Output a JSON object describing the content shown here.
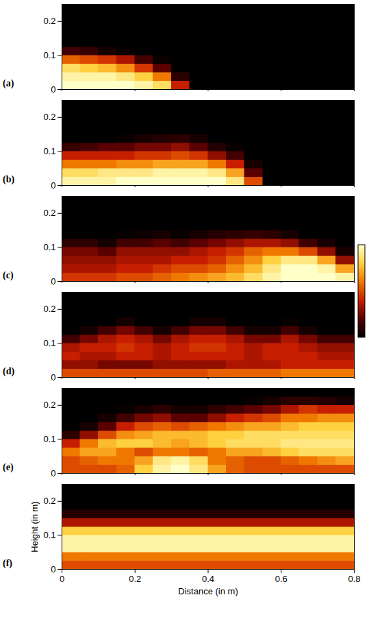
{
  "chart_data": [
    {
      "type": "heatmap",
      "panel": "(a)",
      "xlim": [
        0,
        0.8
      ],
      "ylim": [
        0,
        0.25
      ],
      "xticks": [
        0,
        0.2,
        0.4,
        0.6,
        0.8
      ],
      "yticks": [
        0,
        0.1,
        0.2
      ],
      "tick_labels": "y",
      "x_bins": [
        0,
        0.05,
        0.1,
        0.15,
        0.2,
        0.25,
        0.3,
        0.35,
        0.4,
        0.45,
        0.5,
        0.55,
        0.6,
        0.65,
        0.7,
        0.75,
        0.8
      ],
      "y_bins": [
        0,
        0.025,
        0.05,
        0.075,
        0.1,
        0.125,
        0.15,
        0.175,
        0.2,
        0.225,
        0.25
      ],
      "cells": [
        [
          1,
          1,
          1,
          1,
          0.95,
          0.85,
          0.4,
          0,
          0,
          0,
          0,
          0,
          0,
          0,
          0,
          0
        ],
        [
          0.95,
          0.95,
          0.95,
          0.9,
          0.8,
          0.6,
          0.1,
          0,
          0,
          0,
          0,
          0,
          0,
          0,
          0,
          0
        ],
        [
          0.85,
          0.8,
          0.75,
          0.65,
          0.45,
          0.2,
          0,
          0,
          0,
          0,
          0,
          0,
          0,
          0,
          0,
          0
        ],
        [
          0.55,
          0.5,
          0.45,
          0.35,
          0.15,
          0.02,
          0,
          0,
          0,
          0,
          0,
          0,
          0,
          0,
          0,
          0
        ],
        [
          0.15,
          0.12,
          0.05,
          0.02,
          0,
          0,
          0,
          0,
          0,
          0,
          0,
          0,
          0,
          0,
          0,
          0
        ],
        [
          0,
          0,
          0,
          0,
          0,
          0,
          0,
          0,
          0,
          0,
          0,
          0,
          0,
          0,
          0,
          0
        ],
        [
          0,
          0,
          0,
          0,
          0,
          0,
          0,
          0,
          0,
          0,
          0,
          0,
          0,
          0,
          0,
          0
        ],
        [
          0,
          0,
          0,
          0,
          0,
          0,
          0,
          0,
          0,
          0,
          0,
          0,
          0,
          0,
          0,
          0
        ],
        [
          0,
          0,
          0,
          0,
          0,
          0,
          0,
          0,
          0,
          0,
          0,
          0,
          0,
          0,
          0,
          0
        ],
        [
          0,
          0,
          0,
          0,
          0,
          0,
          0,
          0,
          0,
          0,
          0,
          0,
          0,
          0,
          0,
          0
        ]
      ]
    },
    {
      "type": "heatmap",
      "panel": "(b)",
      "xlim": [
        0,
        0.8
      ],
      "ylim": [
        0,
        0.25
      ],
      "xticks": [
        0,
        0.2,
        0.4,
        0.6,
        0.8
      ],
      "yticks": [
        0,
        0.1,
        0.2
      ],
      "tick_labels": "y",
      "x_bins": [
        0,
        0.05,
        0.1,
        0.15,
        0.2,
        0.25,
        0.3,
        0.35,
        0.4,
        0.45,
        0.5,
        0.55,
        0.6,
        0.65,
        0.7,
        0.75,
        0.8
      ],
      "y_bins": [
        0,
        0.025,
        0.05,
        0.075,
        0.1,
        0.125,
        0.15,
        0.175,
        0.2,
        0.225,
        0.25
      ],
      "cells": [
        [
          0.95,
          0.95,
          0.95,
          1,
          1,
          1,
          1,
          1,
          1,
          0.9,
          0.5,
          0,
          0,
          0,
          0,
          0
        ],
        [
          0.85,
          0.85,
          0.9,
          0.9,
          0.9,
          0.95,
          0.95,
          0.95,
          0.9,
          0.7,
          0.2,
          0,
          0,
          0,
          0,
          0
        ],
        [
          0.6,
          0.6,
          0.6,
          0.65,
          0.65,
          0.7,
          0.7,
          0.7,
          0.6,
          0.4,
          0.05,
          0,
          0,
          0,
          0,
          0
        ],
        [
          0.4,
          0.4,
          0.4,
          0.4,
          0.45,
          0.45,
          0.5,
          0.45,
          0.3,
          0.15,
          0,
          0,
          0,
          0,
          0,
          0
        ],
        [
          0.12,
          0.15,
          0.2,
          0.2,
          0.25,
          0.25,
          0.3,
          0.2,
          0.08,
          0.02,
          0,
          0,
          0,
          0,
          0,
          0
        ],
        [
          0,
          0,
          0,
          0.02,
          0.05,
          0.08,
          0.1,
          0.05,
          0,
          0,
          0,
          0,
          0,
          0,
          0,
          0
        ],
        [
          0,
          0,
          0,
          0,
          0,
          0,
          0,
          0,
          0,
          0,
          0,
          0,
          0,
          0,
          0,
          0
        ],
        [
          0,
          0,
          0,
          0,
          0,
          0,
          0,
          0,
          0,
          0,
          0,
          0,
          0,
          0,
          0,
          0
        ],
        [
          0,
          0,
          0,
          0,
          0,
          0,
          0,
          0,
          0,
          0,
          0,
          0,
          0,
          0,
          0,
          0
        ],
        [
          0,
          0,
          0,
          0,
          0,
          0,
          0,
          0,
          0,
          0,
          0,
          0,
          0,
          0,
          0,
          0
        ]
      ]
    },
    {
      "type": "heatmap",
      "panel": "(c)",
      "xlim": [
        0,
        0.8
      ],
      "ylim": [
        0,
        0.25
      ],
      "xticks": [
        0,
        0.2,
        0.4,
        0.6,
        0.8
      ],
      "yticks": [
        0,
        0.1,
        0.2
      ],
      "tick_labels": "y",
      "colorbar_range": [
        0,
        1
      ],
      "colorbar_ticks": [],
      "x_bins": [
        0,
        0.05,
        0.1,
        0.15,
        0.2,
        0.25,
        0.3,
        0.35,
        0.4,
        0.45,
        0.5,
        0.55,
        0.6,
        0.65,
        0.7,
        0.75,
        0.8
      ],
      "y_bins": [
        0,
        0.025,
        0.05,
        0.075,
        0.1,
        0.125,
        0.15,
        0.175,
        0.2,
        0.225,
        0.25
      ],
      "cells": [
        [
          0.45,
          0.45,
          0.45,
          0.5,
          0.5,
          0.55,
          0.6,
          0.65,
          0.7,
          0.75,
          0.85,
          0.95,
          1,
          1,
          1,
          0.95
        ],
        [
          0.35,
          0.35,
          0.35,
          0.4,
          0.4,
          0.45,
          0.5,
          0.5,
          0.55,
          0.65,
          0.75,
          0.9,
          1,
          1,
          0.95,
          0.7
        ],
        [
          0.3,
          0.3,
          0.3,
          0.35,
          0.35,
          0.35,
          0.4,
          0.4,
          0.45,
          0.55,
          0.65,
          0.8,
          0.9,
          0.9,
          0.7,
          0.3
        ],
        [
          0.25,
          0.25,
          0.2,
          0.3,
          0.3,
          0.3,
          0.3,
          0.35,
          0.4,
          0.45,
          0.55,
          0.6,
          0.6,
          0.5,
          0.3,
          0.05
        ],
        [
          0.1,
          0.1,
          0.05,
          0.15,
          0.15,
          0.2,
          0.15,
          0.2,
          0.25,
          0.3,
          0.35,
          0.35,
          0.3,
          0.15,
          0.05,
          0
        ],
        [
          0,
          0,
          0,
          0.02,
          0.03,
          0.05,
          0.02,
          0.05,
          0.08,
          0.1,
          0.12,
          0.1,
          0.05,
          0,
          0,
          0
        ],
        [
          0,
          0,
          0,
          0,
          0,
          0,
          0,
          0,
          0,
          0,
          0,
          0,
          0,
          0,
          0,
          0
        ],
        [
          0,
          0,
          0,
          0,
          0,
          0,
          0,
          0,
          0,
          0,
          0,
          0,
          0,
          0,
          0,
          0
        ],
        [
          0,
          0,
          0,
          0,
          0,
          0,
          0,
          0,
          0,
          0,
          0,
          0,
          0,
          0,
          0,
          0
        ],
        [
          0,
          0,
          0,
          0,
          0,
          0,
          0,
          0,
          0,
          0,
          0,
          0,
          0,
          0,
          0,
          0
        ]
      ]
    },
    {
      "type": "heatmap",
      "panel": "(d)",
      "xlim": [
        0,
        0.8
      ],
      "ylim": [
        0,
        0.25
      ],
      "xticks": [
        0,
        0.2,
        0.4,
        0.6,
        0.8
      ],
      "yticks": [
        0,
        0.1,
        0.2
      ],
      "tick_labels": "y",
      "x_bins": [
        0,
        0.05,
        0.1,
        0.15,
        0.2,
        0.25,
        0.3,
        0.35,
        0.4,
        0.45,
        0.5,
        0.55,
        0.6,
        0.65,
        0.7,
        0.75,
        0.8
      ],
      "y_bins": [
        0,
        0.025,
        0.05,
        0.075,
        0.1,
        0.125,
        0.15,
        0.175,
        0.2,
        0.225,
        0.25
      ],
      "cells": [
        [
          0.5,
          0.5,
          0.5,
          0.5,
          0.5,
          0.5,
          0.5,
          0.5,
          0.55,
          0.55,
          0.55,
          0.55,
          0.6,
          0.6,
          0.6,
          0.6
        ],
        [
          0.3,
          0.3,
          0.25,
          0.25,
          0.25,
          0.3,
          0.3,
          0.3,
          0.3,
          0.35,
          0.35,
          0.35,
          0.4,
          0.4,
          0.4,
          0.4
        ],
        [
          0.4,
          0.35,
          0.35,
          0.4,
          0.4,
          0.35,
          0.4,
          0.4,
          0.4,
          0.4,
          0.35,
          0.4,
          0.4,
          0.4,
          0.35,
          0.35
        ],
        [
          0.35,
          0.4,
          0.4,
          0.45,
          0.4,
          0.35,
          0.4,
          0.45,
          0.45,
          0.4,
          0.35,
          0.4,
          0.4,
          0.35,
          0.3,
          0.3
        ],
        [
          0.15,
          0.25,
          0.35,
          0.4,
          0.35,
          0.25,
          0.35,
          0.4,
          0.4,
          0.35,
          0.25,
          0.25,
          0.35,
          0.25,
          0.15,
          0.15
        ],
        [
          0,
          0.05,
          0.15,
          0.25,
          0.15,
          0.05,
          0.15,
          0.25,
          0.25,
          0.15,
          0.05,
          0.05,
          0.15,
          0.05,
          0,
          0
        ],
        [
          0,
          0,
          0,
          0.05,
          0,
          0,
          0,
          0.05,
          0.05,
          0,
          0,
          0,
          0.02,
          0,
          0,
          0
        ],
        [
          0,
          0,
          0,
          0,
          0,
          0,
          0,
          0,
          0,
          0,
          0,
          0,
          0,
          0,
          0,
          0
        ],
        [
          0,
          0,
          0,
          0,
          0,
          0,
          0,
          0,
          0,
          0,
          0,
          0,
          0,
          0,
          0,
          0
        ],
        [
          0,
          0,
          0,
          0,
          0,
          0,
          0,
          0,
          0,
          0,
          0,
          0,
          0,
          0,
          0,
          0
        ]
      ]
    },
    {
      "type": "heatmap",
      "panel": "(e)",
      "xlim": [
        0,
        0.8
      ],
      "ylim": [
        0,
        0.25
      ],
      "xticks": [
        0,
        0.2,
        0.4,
        0.6,
        0.8
      ],
      "yticks": [
        0,
        0.1,
        0.2
      ],
      "tick_labels": "y",
      "x_bins": [
        0,
        0.05,
        0.1,
        0.15,
        0.2,
        0.25,
        0.3,
        0.35,
        0.4,
        0.45,
        0.5,
        0.55,
        0.6,
        0.65,
        0.7,
        0.75,
        0.8
      ],
      "y_bins": [
        0,
        0.025,
        0.05,
        0.075,
        0.1,
        0.125,
        0.15,
        0.175,
        0.2,
        0.225,
        0.25
      ],
      "cells": [
        [
          0.5,
          0.5,
          0.5,
          0.55,
          0.8,
          0.95,
          1,
          0.9,
          0.7,
          0.55,
          0.5,
          0.5,
          0.5,
          0.5,
          0.5,
          0.5
        ],
        [
          0.5,
          0.55,
          0.6,
          0.6,
          0.7,
          0.9,
          0.95,
          0.85,
          0.6,
          0.55,
          0.5,
          0.5,
          0.55,
          0.6,
          0.65,
          0.7
        ],
        [
          0.6,
          0.7,
          0.7,
          0.6,
          0.5,
          0.6,
          0.6,
          0.55,
          0.6,
          0.7,
          0.7,
          0.75,
          0.8,
          0.85,
          0.85,
          0.85
        ],
        [
          0.4,
          0.6,
          0.75,
          0.8,
          0.8,
          0.75,
          0.7,
          0.75,
          0.8,
          0.85,
          0.85,
          0.85,
          0.9,
          0.9,
          0.9,
          0.9
        ],
        [
          0.1,
          0.3,
          0.5,
          0.65,
          0.7,
          0.75,
          0.75,
          0.75,
          0.8,
          0.8,
          0.85,
          0.85,
          0.85,
          0.85,
          0.85,
          0.85
        ],
        [
          0,
          0.05,
          0.2,
          0.4,
          0.5,
          0.55,
          0.5,
          0.55,
          0.6,
          0.65,
          0.7,
          0.7,
          0.75,
          0.8,
          0.8,
          0.8
        ],
        [
          0,
          0,
          0.05,
          0.15,
          0.25,
          0.3,
          0.2,
          0.2,
          0.3,
          0.4,
          0.45,
          0.5,
          0.6,
          0.6,
          0.65,
          0.65
        ],
        [
          0,
          0,
          0,
          0.02,
          0.05,
          0.1,
          0.05,
          0.05,
          0.1,
          0.15,
          0.2,
          0.25,
          0.35,
          0.45,
          0.4,
          0.4
        ],
        [
          0,
          0,
          0,
          0,
          0,
          0,
          0,
          0,
          0,
          0,
          0.02,
          0.05,
          0.1,
          0.1,
          0.08,
          0.05
        ],
        [
          0,
          0,
          0,
          0,
          0,
          0,
          0,
          0,
          0,
          0,
          0,
          0,
          0,
          0,
          0,
          0
        ]
      ]
    },
    {
      "type": "heatmap",
      "panel": "(f)",
      "x_label": "Distance (in m)",
      "y_label": "Height (in m)",
      "xlim": [
        0,
        0.8
      ],
      "ylim": [
        0,
        0.25
      ],
      "xticks": [
        0,
        0.2,
        0.4,
        0.6,
        0.8
      ],
      "yticks": [
        0,
        0.1,
        0.2
      ],
      "x_bins": [
        0,
        0.05,
        0.1,
        0.15,
        0.2,
        0.25,
        0.3,
        0.35,
        0.4,
        0.45,
        0.5,
        0.55,
        0.6,
        0.65,
        0.7,
        0.75,
        0.8
      ],
      "y_bins": [
        0,
        0.025,
        0.05,
        0.075,
        0.1,
        0.125,
        0.15,
        0.175,
        0.2,
        0.225,
        0.25
      ],
      "cells": [
        [
          0.5,
          0.5,
          0.5,
          0.5,
          0.5,
          0.5,
          0.5,
          0.5,
          0.5,
          0.5,
          0.5,
          0.5,
          0.5,
          0.5,
          0.5,
          0.5
        ],
        [
          0.6,
          0.6,
          0.6,
          0.6,
          0.6,
          0.6,
          0.6,
          0.6,
          0.6,
          0.6,
          0.6,
          0.6,
          0.6,
          0.6,
          0.6,
          0.6
        ],
        [
          0.95,
          0.95,
          0.95,
          0.95,
          0.95,
          0.95,
          0.95,
          0.95,
          0.95,
          0.95,
          0.95,
          0.95,
          0.95,
          0.95,
          0.95,
          0.95
        ],
        [
          0.95,
          0.95,
          0.95,
          0.95,
          0.95,
          0.95,
          0.95,
          0.95,
          0.95,
          0.95,
          0.95,
          0.95,
          0.95,
          0.95,
          0.95,
          0.95
        ],
        [
          0.8,
          0.8,
          0.8,
          0.8,
          0.8,
          0.8,
          0.8,
          0.8,
          0.8,
          0.8,
          0.8,
          0.8,
          0.8,
          0.8,
          0.8,
          0.8
        ],
        [
          0.35,
          0.35,
          0.35,
          0.35,
          0.35,
          0.35,
          0.35,
          0.35,
          0.35,
          0.35,
          0.35,
          0.35,
          0.35,
          0.35,
          0.35,
          0.35
        ],
        [
          0.08,
          0.08,
          0.08,
          0.08,
          0.08,
          0.08,
          0.08,
          0.08,
          0.08,
          0.08,
          0.08,
          0.08,
          0.08,
          0.08,
          0.08,
          0.08
        ],
        [
          0,
          0,
          0,
          0,
          0,
          0,
          0,
          0,
          0,
          0,
          0,
          0,
          0,
          0,
          0,
          0
        ],
        [
          0,
          0,
          0,
          0,
          0,
          0,
          0,
          0,
          0,
          0,
          0,
          0,
          0,
          0,
          0,
          0
        ],
        [
          0,
          0,
          0,
          0,
          0,
          0,
          0,
          0,
          0,
          0,
          0,
          0,
          0,
          0,
          0,
          0
        ]
      ]
    }
  ]
}
